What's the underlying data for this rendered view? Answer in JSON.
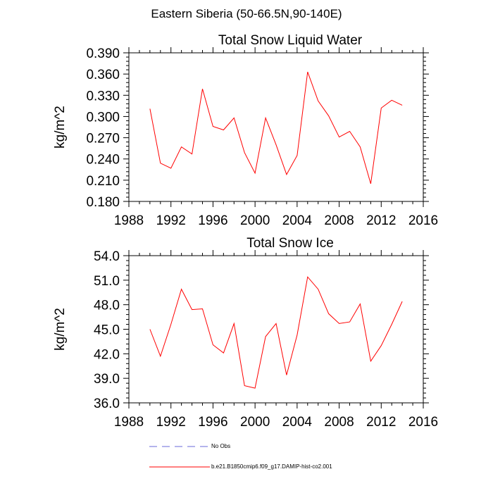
{
  "figure": {
    "title": "Eastern Siberia (50-66.5N,90-140E)"
  },
  "chart_data": [
    {
      "type": "line",
      "title": "Total Snow Liquid Water",
      "xlabel": "",
      "ylabel": "kg/m^2",
      "xlim": [
        1988,
        2016
      ],
      "ylim": [
        0.18,
        0.39
      ],
      "xticks": [
        1988,
        1992,
        1996,
        2000,
        2004,
        2008,
        2012,
        2016
      ],
      "xtick_labels": [
        "1988",
        "1992",
        "1996",
        "2000",
        "2004",
        "2008",
        "2012",
        "2016"
      ],
      "yticks": [
        0.18,
        0.21,
        0.24,
        0.27,
        0.3,
        0.33,
        0.36,
        0.39
      ],
      "ytick_labels": [
        "0.180",
        "0.210",
        "0.240",
        "0.270",
        "0.300",
        "0.330",
        "0.360",
        "0.390"
      ],
      "grid": false,
      "series": [
        {
          "name": "b.e21.B1850cmip6.f09_g17.DAMIP-hist-co2.001",
          "color": "#ff0000",
          "x": [
            1990,
            1991,
            1992,
            1993,
            1994,
            1995,
            1996,
            1997,
            1998,
            1999,
            2000,
            2001,
            2002,
            2003,
            2004,
            2005,
            2006,
            2007,
            2008,
            2009,
            2010,
            2011,
            2012,
            2013,
            2014
          ],
          "y": [
            0.311,
            0.234,
            0.227,
            0.257,
            0.247,
            0.339,
            0.286,
            0.281,
            0.298,
            0.249,
            0.22,
            0.298,
            0.26,
            0.218,
            0.245,
            0.363,
            0.322,
            0.301,
            0.271,
            0.279,
            0.257,
            0.205,
            0.312,
            0.323,
            0.316
          ]
        }
      ]
    },
    {
      "type": "line",
      "title": "Total Snow Ice",
      "xlabel": "",
      "ylabel": "kg/m^2",
      "xlim": [
        1988,
        2016
      ],
      "ylim": [
        36.0,
        54.0
      ],
      "xticks": [
        1988,
        1992,
        1996,
        2000,
        2004,
        2008,
        2012,
        2016
      ],
      "xtick_labels": [
        "1988",
        "1992",
        "1996",
        "2000",
        "2004",
        "2008",
        "2012",
        "2016"
      ],
      "yticks": [
        36.0,
        39.0,
        42.0,
        45.0,
        48.0,
        51.0,
        54.0
      ],
      "ytick_labels": [
        "36.0",
        "39.0",
        "42.0",
        "45.0",
        "48.0",
        "51.0",
        "54.0"
      ],
      "grid": false,
      "series": [
        {
          "name": "b.e21.B1850cmip6.f09_g17.DAMIP-hist-co2.001",
          "color": "#ff0000",
          "x": [
            1990,
            1991,
            1992,
            1993,
            1994,
            1995,
            1996,
            1997,
            1998,
            1999,
            2000,
            2001,
            2002,
            2003,
            2004,
            2005,
            2006,
            2007,
            2008,
            2009,
            2010,
            2011,
            2012,
            2013,
            2014
          ],
          "y": [
            45.0,
            41.7,
            45.6,
            49.9,
            47.4,
            47.5,
            43.1,
            42.1,
            45.7,
            38.1,
            37.8,
            44.1,
            45.7,
            39.4,
            44.3,
            51.4,
            49.9,
            46.9,
            45.7,
            45.9,
            48.1,
            41.1,
            43.0,
            45.6,
            48.4
          ]
        }
      ]
    }
  ],
  "legend": {
    "placement": "bottom",
    "items": [
      {
        "label": "No Obs",
        "color": "#6a6ad8",
        "style": "dashed"
      },
      {
        "label": "b.e21.B1850cmip6.f09_g17.DAMIP-hist-co2.001",
        "color": "#ff0000",
        "style": "solid"
      }
    ]
  }
}
